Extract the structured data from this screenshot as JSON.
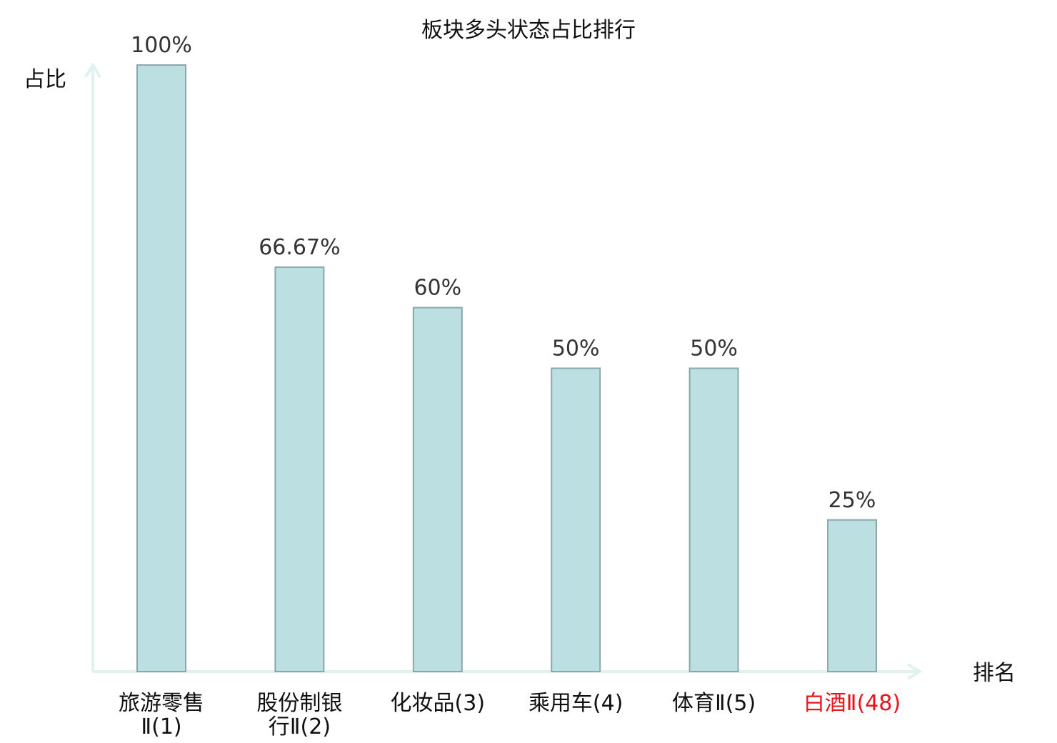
{
  "chart_data": {
    "type": "bar",
    "title": "板块多头状态占比排行",
    "ylabel": "占比",
    "xlabel": "排名",
    "categories": [
      {
        "lines": [
          "旅游零售",
          "Ⅱ(1)"
        ],
        "highlight": false
      },
      {
        "lines": [
          "股份制银",
          "行Ⅱ(2)"
        ],
        "highlight": false
      },
      {
        "lines": [
          "化妆品(3)"
        ],
        "highlight": false
      },
      {
        "lines": [
          "乘用车(4)"
        ],
        "highlight": false
      },
      {
        "lines": [
          "体育Ⅱ(5)"
        ],
        "highlight": false
      },
      {
        "lines": [
          "白酒Ⅱ(48)"
        ],
        "highlight": true
      }
    ],
    "values": [
      100,
      66.67,
      60,
      50,
      50,
      25
    ],
    "value_labels": [
      "100%",
      "66.67%",
      "60%",
      "50%",
      "50%",
      "25%"
    ],
    "ylim": [
      0,
      100
    ],
    "grid": false,
    "colors": {
      "bar_fill": "#bce0e2",
      "bar_stroke": "#8aa8ab",
      "axis": "#e0f2f0",
      "highlight_text": "#e8141b",
      "label_text": "#111111",
      "value_text": "#333333"
    }
  }
}
